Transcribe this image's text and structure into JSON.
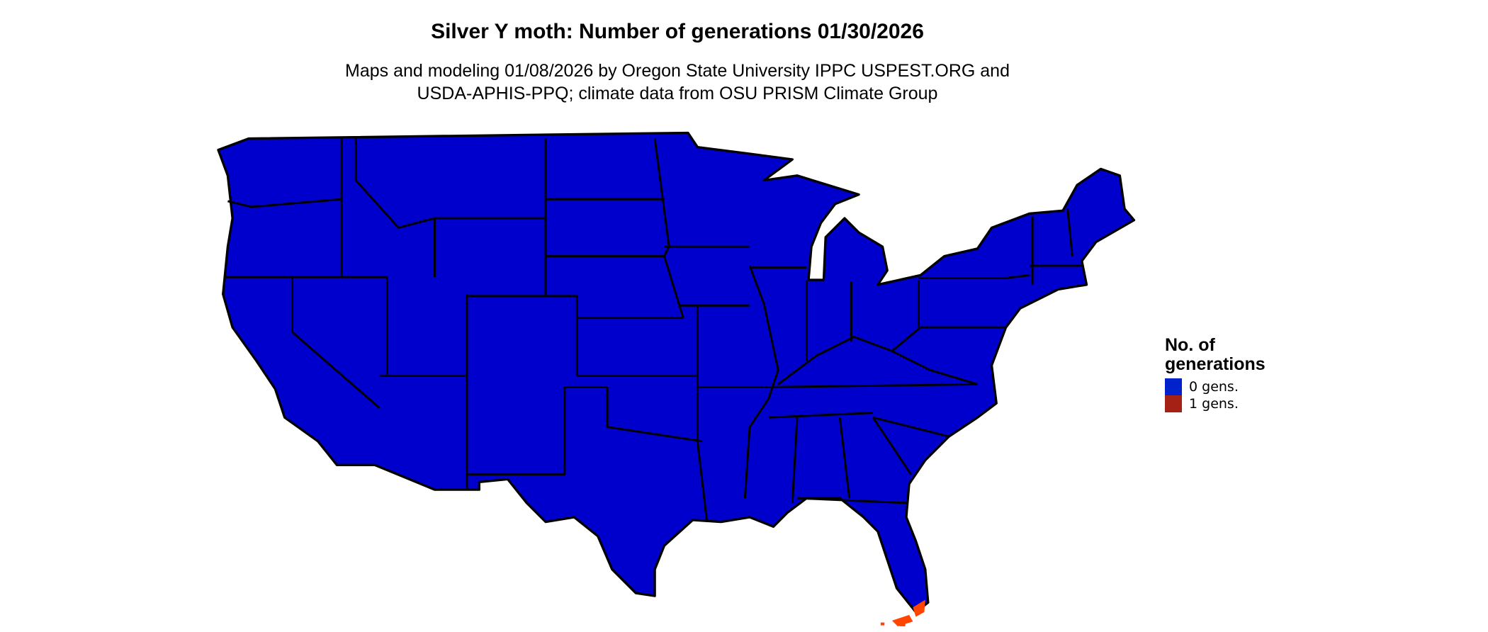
{
  "title": "Silver Y moth: Number of generations 01/30/2026",
  "subtitle_lines": [
    "Maps and modeling 01/08/2026 by Oregon State University IPPC USPEST.ORG and",
    "USDA-APHIS-PPQ; climate data from OSU PRISM Climate Group"
  ],
  "legend": {
    "title_lines": [
      "No. of",
      "generations"
    ],
    "items": [
      {
        "label": "0 gens.",
        "color": "#0022cc"
      },
      {
        "label": "1 gens.",
        "color": "#a52115"
      }
    ]
  },
  "map": {
    "region": "Contiguous United States",
    "fill_color": "#0000cc",
    "highlight_color": "#ff4500",
    "highlight_area": "southern Florida tip and Florida Keys (1 gens.)",
    "border_color": "#000000"
  }
}
